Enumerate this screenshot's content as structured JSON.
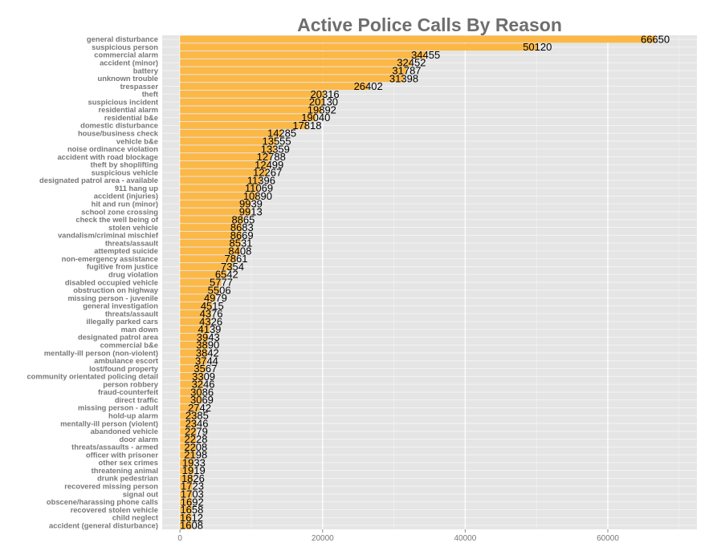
{
  "chart_data": {
    "type": "bar",
    "orientation": "horizontal",
    "title": "Active Police Calls By Reason",
    "xlabel": "",
    "ylabel": "",
    "xlim": [
      -2500,
      72500
    ],
    "x_ticks": [
      0,
      20000,
      40000,
      60000
    ],
    "x_tick_labels": [
      "0",
      "20000",
      "40000",
      "60000"
    ],
    "grid": true,
    "legend": "none",
    "bar_color": "#fbb847",
    "background_color": "#e5e5e5",
    "gridline_color": "#f5f5f5",
    "categories": [
      "general disturbance",
      "suspicious person",
      "commercial alarm",
      "accident (minor)",
      "battery",
      "unknown trouble",
      "trespasser",
      "theft",
      "suspicious incident",
      "residential alarm",
      "residential b&e",
      "domestic disturbance",
      "house/business check",
      "vehicle b&e",
      "noise ordinance violation",
      "accident with road blockage",
      "theft by shoplifting",
      "suspicious vehicle",
      "designated patrol area - available",
      "911 hang up",
      "accident (injuries)",
      "hit and run (minor)",
      "school zone crossing",
      "check the well being of",
      "stolen vehicle",
      "vandalism/criminal mischief",
      "threats/assault",
      "attempted suicide",
      "non-emergency assistance",
      "fugitive from justice",
      "drug violation",
      "disabled occupied vehicle",
      "obstruction on highway",
      "missing person - juvenile",
      "general investigation",
      "threats/assault",
      "illegally parked cars",
      "man down",
      "designated patrol area",
      "commercial b&e",
      "mentally-ill person (non-violent)",
      "ambulance escort",
      "lost/found property",
      "community orientated policing detail",
      "person robbery",
      "fraud-counterfeit",
      "direct traffic",
      "missing person - adult",
      "hold-up alarm",
      "mentally-ill person (violent)",
      "abandoned vehicle",
      "door alarm",
      "threats/assaults - armed",
      "officer with prisoner",
      "other sex crimes",
      "threatening animal",
      "drunk pedestrian",
      "recovered missing person",
      "signal out",
      "obscene/harassing phone calls",
      "recovered stolen vehicle",
      "child neglect",
      "accident (general disturbance)"
    ],
    "values": [
      66650,
      50120,
      34455,
      32452,
      31787,
      31398,
      26402,
      20316,
      20130,
      19892,
      19040,
      17818,
      14285,
      13555,
      13359,
      12788,
      12499,
      12267,
      11396,
      11069,
      10890,
      9939,
      9913,
      8865,
      8683,
      8669,
      8531,
      8408,
      7861,
      7354,
      6542,
      5777,
      5506,
      4979,
      4515,
      4376,
      4326,
      4139,
      3943,
      3890,
      3842,
      3744,
      3567,
      3309,
      3246,
      3086,
      3069,
      2742,
      2385,
      2346,
      2279,
      2228,
      2208,
      2198,
      1933,
      1919,
      1826,
      1723,
      1703,
      1692,
      1658,
      1612,
      1608
    ]
  }
}
